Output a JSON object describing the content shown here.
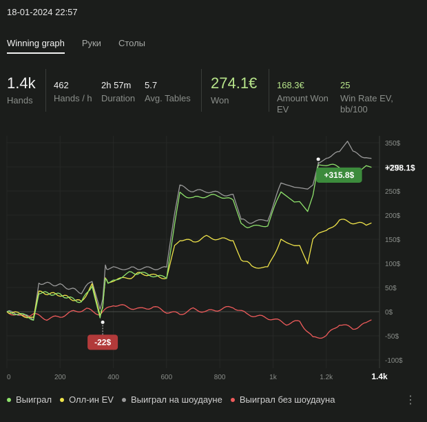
{
  "header": {
    "datetime": "18-01-2024 22:57"
  },
  "tabs": [
    {
      "label": "Winning graph",
      "active": true
    },
    {
      "label": "Руки",
      "active": false
    },
    {
      "label": "Столы",
      "active": false
    }
  ],
  "stats": {
    "hands": {
      "value": "1.4k",
      "label": "Hands"
    },
    "hands_per_h": {
      "value": "462",
      "label": "Hands / h"
    },
    "duration": {
      "value": "2h 57m",
      "label": "Duration"
    },
    "avg_tables": {
      "value": "5.7",
      "label": "Avg. Tables"
    },
    "won": {
      "value": "274.1€",
      "label": "Won"
    },
    "amount_won_ev": {
      "value": "168.3€",
      "label_1": "Amount Won",
      "label_2": "EV"
    },
    "win_rate_ev": {
      "value": "25",
      "label_1": "Win Rate EV,",
      "label_2": "bb/100"
    }
  },
  "colors": {
    "won": "#8fe36c",
    "allin_ev": "#f0e44a",
    "showdown": "#9a9a9a",
    "nonshowdown": "#ef5b5b",
    "badge_green": "#3c8b3c",
    "badge_red": "#b23a3a"
  },
  "chart_data": {
    "type": "line",
    "xlim": [
      0,
      1400
    ],
    "ylim": [
      -100,
      350
    ],
    "x_ticks": [
      "0",
      "200",
      "400",
      "600",
      "800",
      "1k",
      "1.2k",
      "1.4k"
    ],
    "y_ticks": [
      "350$",
      "300$",
      "250$",
      "200$",
      "150$",
      "100$",
      "50$",
      "0$",
      "-50$",
      "-100$"
    ],
    "series": [
      {
        "name": "Выиграл",
        "color_key": "won",
        "x": [
          0,
          50,
          100,
          120,
          200,
          280,
          320,
          350,
          360,
          370,
          380,
          400,
          460,
          500,
          600,
          630,
          650,
          700,
          750,
          800,
          850,
          880,
          920,
          980,
          1030,
          1050,
          1080,
          1100,
          1130,
          1150,
          1170,
          1200,
          1250,
          1300,
          1350,
          1370
        ],
        "y": [
          0,
          -5,
          -15,
          40,
          35,
          20,
          55,
          -10,
          10,
          70,
          60,
          65,
          80,
          80,
          70,
          180,
          245,
          235,
          240,
          240,
          230,
          180,
          175,
          180,
          250,
          240,
          225,
          225,
          205,
          240,
          305,
          305,
          300,
          290,
          300,
          298
        ]
      },
      {
        "name": "Олл-ин EV",
        "color_key": "allin_ev",
        "x": [
          0,
          50,
          100,
          120,
          200,
          280,
          320,
          350,
          360,
          370,
          380,
          400,
          460,
          500,
          600,
          630,
          650,
          700,
          750,
          800,
          850,
          880,
          920,
          980,
          1030,
          1050,
          1080,
          1100,
          1130,
          1150,
          1170,
          1200,
          1250,
          1300,
          1350,
          1370
        ],
        "y": [
          0,
          -5,
          -15,
          40,
          35,
          20,
          55,
          -10,
          10,
          70,
          60,
          65,
          70,
          80,
          70,
          140,
          150,
          145,
          155,
          150,
          150,
          110,
          95,
          90,
          150,
          145,
          140,
          140,
          100,
          150,
          160,
          165,
          190,
          185,
          180,
          183
        ]
      },
      {
        "name": "Выиграл на шоудауне",
        "color_key": "showdown",
        "x": [
          0,
          50,
          100,
          120,
          200,
          280,
          320,
          350,
          360,
          370,
          380,
          400,
          460,
          500,
          600,
          630,
          650,
          700,
          750,
          800,
          850,
          880,
          920,
          980,
          1030,
          1050,
          1080,
          1100,
          1130,
          1150,
          1170,
          1200,
          1250,
          1280,
          1300,
          1350,
          1370
        ],
        "y": [
          0,
          -5,
          -15,
          60,
          55,
          40,
          65,
          5,
          25,
          95,
          85,
          90,
          90,
          90,
          90,
          200,
          260,
          250,
          250,
          245,
          240,
          190,
          185,
          190,
          265,
          260,
          255,
          255,
          255,
          265,
          310,
          320,
          330,
          350,
          330,
          320,
          320
        ]
      },
      {
        "name": "Выиграл без шоудауна",
        "color_key": "nonshowdown",
        "x": [
          0,
          50,
          100,
          150,
          200,
          250,
          300,
          350,
          400,
          450,
          500,
          550,
          600,
          650,
          700,
          750,
          800,
          850,
          900,
          950,
          1000,
          1050,
          1100,
          1150,
          1200,
          1250,
          1300,
          1350,
          1370
        ],
        "y": [
          0,
          -10,
          -5,
          -15,
          -10,
          0,
          5,
          -5,
          15,
          10,
          5,
          10,
          0,
          -5,
          5,
          0,
          5,
          10,
          -5,
          -10,
          -15,
          -25,
          -20,
          -55,
          -50,
          -25,
          -35,
          -25,
          -20
        ]
      }
    ],
    "badges": [
      {
        "text": "+315.8$",
        "x": 1170,
        "y": 315.8,
        "color_key": "badge_green"
      },
      {
        "text": "-22$",
        "x": 360,
        "y": -22,
        "color_key": "badge_red"
      }
    ],
    "end_label": {
      "text": "+298.1$",
      "y": 298.1
    }
  },
  "menu": {
    "more_icon": "⋮"
  }
}
